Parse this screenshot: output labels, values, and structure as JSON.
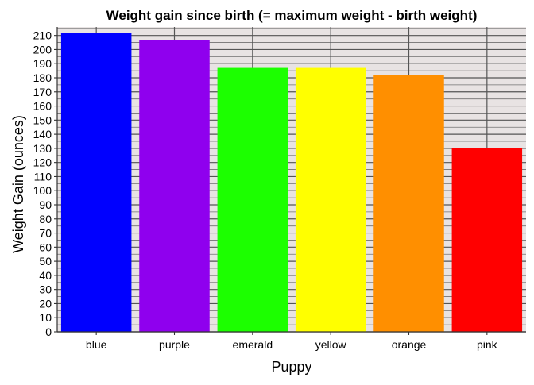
{
  "chart_data": {
    "type": "bar",
    "title": "Weight gain since birth (= maximum weight - birth weight)",
    "xlabel": "Puppy",
    "ylabel": "Weight Gain (ounces)",
    "categories": [
      "blue",
      "purple",
      "emerald",
      "yellow",
      "orange",
      "pink"
    ],
    "values": [
      212,
      207,
      187,
      187,
      182,
      130
    ],
    "colors": [
      "#0000ff",
      "#8f00ee",
      "#1cff00",
      "#ffff00",
      "#ff8f00",
      "#ff0000"
    ],
    "ylim": [
      0,
      216
    ],
    "yticks": [
      0,
      10,
      20,
      30,
      40,
      50,
      60,
      70,
      80,
      90,
      100,
      110,
      120,
      130,
      140,
      150,
      160,
      170,
      180,
      190,
      200,
      210
    ],
    "grid": true,
    "minor_grid_step": 5,
    "legend": "none",
    "panel_background": "#e8e3e3"
  }
}
